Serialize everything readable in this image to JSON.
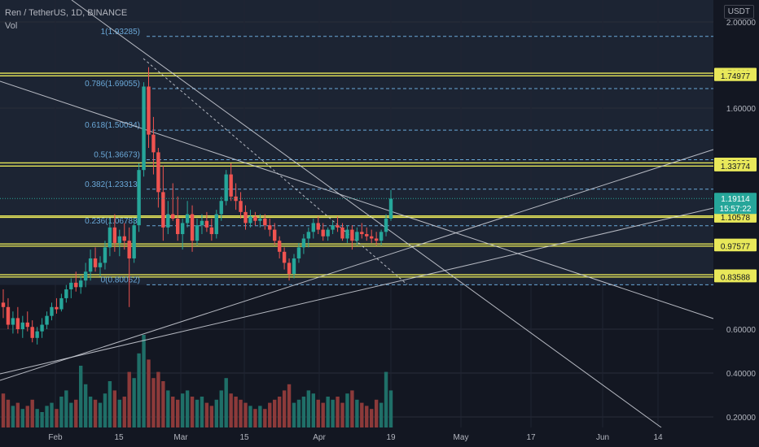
{
  "header": {
    "symbol_line": "Ren / TetherUS, 1D, BINANCE",
    "volume_label": "Vol",
    "unit": "USDT"
  },
  "colors": {
    "background": "#131722",
    "up": "#26a69a",
    "down": "#ef5350",
    "up_volume": "#1f6f68",
    "down_volume": "#8c3a3a",
    "level_line": "#e8e85a",
    "fib_line": "#6aa8d8",
    "trend_line": "#d1d4dc",
    "last_price": "#26a69a"
  },
  "chart_data": {
    "type": "candlestick",
    "price_axis": {
      "ticks": [
        "2.00000",
        "1.60000",
        "0.60000",
        "0.40000",
        "0.20000"
      ],
      "range": [
        0.15,
        2.05
      ]
    },
    "time_axis": {
      "labels": [
        "Feb",
        "15",
        "Mar",
        "15",
        "Apr",
        "19",
        "May",
        "17",
        "Jun",
        "14"
      ]
    },
    "levels": [
      {
        "label": "1.76218",
        "value": 1.76218
      },
      {
        "label": "1.74977",
        "value": 1.74977
      },
      {
        "label": "1.35198",
        "value": 1.35198
      },
      {
        "label": "1.33774",
        "value": 1.33774
      },
      {
        "label": "1.11200",
        "value": 1.112
      },
      {
        "label": "1.10578",
        "value": 1.10578
      },
      {
        "label": "0.98548",
        "value": 0.98548
      },
      {
        "label": "0.97577",
        "value": 0.97577
      },
      {
        "label": "0.84612",
        "value": 0.84612
      },
      {
        "label": "0.83588",
        "value": 0.83588
      }
    ],
    "fibonacci": [
      {
        "label": "1(1.93285)",
        "value": 1.93285
      },
      {
        "label": "0.786(1.69055)",
        "value": 1.69055
      },
      {
        "label": "0.618(1.50034)",
        "value": 1.50034
      },
      {
        "label": "0.5(1.36673)",
        "value": 1.36673
      },
      {
        "label": "0.382(1.23313)",
        "value": 1.23313
      },
      {
        "label": "0.236(1.06783)",
        "value": 1.06783
      },
      {
        "label": "0(0.80062)",
        "value": 0.80062
      }
    ],
    "last_price": {
      "label": "1.19114",
      "countdown": "15:57:22",
      "value": 1.19114
    },
    "candles": [
      {
        "o": 0.72,
        "h": 0.78,
        "l": 0.65,
        "c": 0.7
      },
      {
        "o": 0.7,
        "h": 0.74,
        "l": 0.6,
        "c": 0.62
      },
      {
        "o": 0.62,
        "h": 0.68,
        "l": 0.58,
        "c": 0.65
      },
      {
        "o": 0.65,
        "h": 0.7,
        "l": 0.58,
        "c": 0.6
      },
      {
        "o": 0.6,
        "h": 0.66,
        "l": 0.56,
        "c": 0.63
      },
      {
        "o": 0.63,
        "h": 0.68,
        "l": 0.59,
        "c": 0.61
      },
      {
        "o": 0.61,
        "h": 0.64,
        "l": 0.54,
        "c": 0.56
      },
      {
        "o": 0.56,
        "h": 0.61,
        "l": 0.53,
        "c": 0.59
      },
      {
        "o": 0.59,
        "h": 0.65,
        "l": 0.56,
        "c": 0.62
      },
      {
        "o": 0.62,
        "h": 0.68,
        "l": 0.6,
        "c": 0.66
      },
      {
        "o": 0.66,
        "h": 0.72,
        "l": 0.64,
        "c": 0.7
      },
      {
        "o": 0.7,
        "h": 0.74,
        "l": 0.67,
        "c": 0.69
      },
      {
        "o": 0.69,
        "h": 0.76,
        "l": 0.68,
        "c": 0.74
      },
      {
        "o": 0.74,
        "h": 0.8,
        "l": 0.72,
        "c": 0.78
      },
      {
        "o": 0.78,
        "h": 0.83,
        "l": 0.74,
        "c": 0.81
      },
      {
        "o": 0.81,
        "h": 0.86,
        "l": 0.77,
        "c": 0.79
      },
      {
        "o": 0.79,
        "h": 0.84,
        "l": 0.76,
        "c": 0.82
      },
      {
        "o": 0.82,
        "h": 0.9,
        "l": 0.79,
        "c": 0.86
      },
      {
        "o": 0.86,
        "h": 0.96,
        "l": 0.82,
        "c": 0.92
      },
      {
        "o": 0.92,
        "h": 0.97,
        "l": 0.86,
        "c": 0.88
      },
      {
        "o": 0.88,
        "h": 0.93,
        "l": 0.84,
        "c": 0.9
      },
      {
        "o": 0.9,
        "h": 1.0,
        "l": 0.87,
        "c": 0.97
      },
      {
        "o": 0.97,
        "h": 1.1,
        "l": 0.93,
        "c": 1.06
      },
      {
        "o": 1.06,
        "h": 1.12,
        "l": 0.95,
        "c": 0.99
      },
      {
        "o": 0.99,
        "h": 1.05,
        "l": 0.93,
        "c": 1.02
      },
      {
        "o": 1.02,
        "h": 1.08,
        "l": 0.96,
        "c": 1.0
      },
      {
        "o": 1.0,
        "h": 1.06,
        "l": 0.7,
        "c": 0.92
      },
      {
        "o": 0.92,
        "h": 1.1,
        "l": 0.9,
        "c": 1.07
      },
      {
        "o": 1.07,
        "h": 1.35,
        "l": 1.04,
        "c": 1.32
      },
      {
        "o": 1.32,
        "h": 1.72,
        "l": 1.29,
        "c": 1.7
      },
      {
        "o": 1.7,
        "h": 1.79,
        "l": 1.42,
        "c": 1.48
      },
      {
        "o": 1.48,
        "h": 1.56,
        "l": 1.3,
        "c": 1.4
      },
      {
        "o": 1.4,
        "h": 1.42,
        "l": 1.15,
        "c": 1.22
      },
      {
        "o": 1.22,
        "h": 1.34,
        "l": 1.0,
        "c": 1.06
      },
      {
        "o": 1.06,
        "h": 1.18,
        "l": 1.03,
        "c": 1.12
      },
      {
        "o": 1.12,
        "h": 1.26,
        "l": 1.09,
        "c": 1.1
      },
      {
        "o": 1.1,
        "h": 1.2,
        "l": 1.0,
        "c": 1.03
      },
      {
        "o": 1.03,
        "h": 1.1,
        "l": 0.96,
        "c": 1.08
      },
      {
        "o": 1.08,
        "h": 1.18,
        "l": 1.06,
        "c": 1.12
      },
      {
        "o": 1.12,
        "h": 1.16,
        "l": 0.95,
        "c": 1.0
      },
      {
        "o": 1.0,
        "h": 1.1,
        "l": 0.98,
        "c": 1.07
      },
      {
        "o": 1.07,
        "h": 1.12,
        "l": 1.03,
        "c": 1.09
      },
      {
        "o": 1.09,
        "h": 1.13,
        "l": 1.04,
        "c": 1.06
      },
      {
        "o": 1.06,
        "h": 1.1,
        "l": 1.0,
        "c": 1.03
      },
      {
        "o": 1.03,
        "h": 1.14,
        "l": 1.01,
        "c": 1.12
      },
      {
        "o": 1.12,
        "h": 1.2,
        "l": 1.09,
        "c": 1.18
      },
      {
        "o": 1.18,
        "h": 1.32,
        "l": 1.16,
        "c": 1.3
      },
      {
        "o": 1.3,
        "h": 1.35,
        "l": 1.18,
        "c": 1.2
      },
      {
        "o": 1.2,
        "h": 1.26,
        "l": 1.14,
        "c": 1.18
      },
      {
        "o": 1.18,
        "h": 1.22,
        "l": 1.1,
        "c": 1.13
      },
      {
        "o": 1.13,
        "h": 1.16,
        "l": 1.05,
        "c": 1.08
      },
      {
        "o": 1.08,
        "h": 1.14,
        "l": 1.06,
        "c": 1.11
      },
      {
        "o": 1.11,
        "h": 1.13,
        "l": 1.07,
        "c": 1.09
      },
      {
        "o": 1.09,
        "h": 1.12,
        "l": 1.06,
        "c": 1.1
      },
      {
        "o": 1.1,
        "h": 1.12,
        "l": 1.05,
        "c": 1.07
      },
      {
        "o": 1.07,
        "h": 1.1,
        "l": 1.02,
        "c": 1.05
      },
      {
        "o": 1.05,
        "h": 1.08,
        "l": 0.98,
        "c": 1.0
      },
      {
        "o": 1.0,
        "h": 1.02,
        "l": 0.92,
        "c": 0.95
      },
      {
        "o": 0.95,
        "h": 0.97,
        "l": 0.87,
        "c": 0.9
      },
      {
        "o": 0.9,
        "h": 0.92,
        "l": 0.82,
        "c": 0.85
      },
      {
        "o": 0.85,
        "h": 0.94,
        "l": 0.83,
        "c": 0.92
      },
      {
        "o": 0.92,
        "h": 0.99,
        "l": 0.9,
        "c": 0.97
      },
      {
        "o": 0.97,
        "h": 1.03,
        "l": 0.94,
        "c": 1.01
      },
      {
        "o": 1.01,
        "h": 1.06,
        "l": 0.97,
        "c": 1.04
      },
      {
        "o": 1.04,
        "h": 1.1,
        "l": 1.01,
        "c": 1.08
      },
      {
        "o": 1.08,
        "h": 1.11,
        "l": 1.03,
        "c": 1.05
      },
      {
        "o": 1.05,
        "h": 1.08,
        "l": 1.0,
        "c": 1.02
      },
      {
        "o": 1.02,
        "h": 1.06,
        "l": 1.0,
        "c": 1.05
      },
      {
        "o": 1.05,
        "h": 1.09,
        "l": 1.03,
        "c": 1.07
      },
      {
        "o": 1.07,
        "h": 1.11,
        "l": 1.04,
        "c": 1.06
      },
      {
        "o": 1.06,
        "h": 1.08,
        "l": 1.0,
        "c": 1.01
      },
      {
        "o": 1.01,
        "h": 1.07,
        "l": 0.99,
        "c": 1.05
      },
      {
        "o": 1.05,
        "h": 1.07,
        "l": 0.96,
        "c": 1.0
      },
      {
        "o": 1.0,
        "h": 1.06,
        "l": 0.98,
        "c": 1.04
      },
      {
        "o": 1.04,
        "h": 1.08,
        "l": 1.01,
        "c": 1.03
      },
      {
        "o": 1.03,
        "h": 1.06,
        "l": 1.0,
        "c": 1.02
      },
      {
        "o": 1.02,
        "h": 1.05,
        "l": 0.99,
        "c": 1.01
      },
      {
        "o": 1.01,
        "h": 1.04,
        "l": 0.98,
        "c": 1.0
      },
      {
        "o": 1.0,
        "h": 1.05,
        "l": 0.98,
        "c": 1.04
      },
      {
        "o": 1.04,
        "h": 1.12,
        "l": 1.02,
        "c": 1.1
      },
      {
        "o": 1.1,
        "h": 1.23,
        "l": 1.09,
        "c": 1.19
      }
    ],
    "volume": [
      0.11,
      0.09,
      0.07,
      0.08,
      0.06,
      0.07,
      0.09,
      0.06,
      0.05,
      0.07,
      0.08,
      0.06,
      0.1,
      0.12,
      0.08,
      0.09,
      0.2,
      0.14,
      0.1,
      0.09,
      0.08,
      0.11,
      0.15,
      0.12,
      0.09,
      0.1,
      0.18,
      0.16,
      0.24,
      0.3,
      0.22,
      0.16,
      0.18,
      0.15,
      0.12,
      0.1,
      0.09,
      0.11,
      0.12,
      0.1,
      0.09,
      0.1,
      0.08,
      0.07,
      0.09,
      0.12,
      0.16,
      0.11,
      0.1,
      0.09,
      0.08,
      0.07,
      0.06,
      0.07,
      0.06,
      0.08,
      0.09,
      0.1,
      0.12,
      0.14,
      0.08,
      0.09,
      0.1,
      0.12,
      0.11,
      0.09,
      0.08,
      0.1,
      0.09,
      0.1,
      0.08,
      0.11,
      0.12,
      0.09,
      0.08,
      0.07,
      0.06,
      0.09,
      0.08,
      0.18,
      0.12
    ]
  }
}
